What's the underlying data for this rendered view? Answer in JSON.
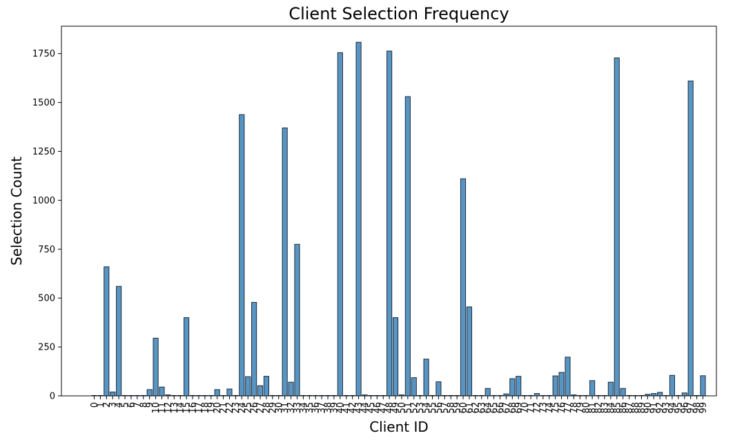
{
  "chart_data": {
    "type": "bar",
    "title": "Client Selection Frequency",
    "xlabel": "Client ID",
    "ylabel": "Selection Count",
    "ylim": [
      0,
      1890
    ],
    "yticks": [
      0,
      250,
      500,
      750,
      1000,
      1250,
      1500,
      1750
    ],
    "ytick_labels": [
      "0",
      "250",
      "500",
      "750",
      "1000",
      "1250",
      "1500",
      "1750"
    ],
    "grid": false,
    "colors": {
      "bar": "#4f8fc0",
      "edge": "#1a2a3a"
    },
    "categories": [
      "0",
      "1",
      "2",
      "3",
      "4",
      "5",
      "6",
      "7",
      "8",
      "9",
      "10",
      "11",
      "12",
      "13",
      "14",
      "15",
      "16",
      "17",
      "18",
      "19",
      "20",
      "21",
      "22",
      "23",
      "24",
      "25",
      "26",
      "27",
      "28",
      "29",
      "30",
      "31",
      "32",
      "33",
      "34",
      "35",
      "36",
      "37",
      "38",
      "39",
      "40",
      "41",
      "42",
      "43",
      "44",
      "45",
      "46",
      "47",
      "48",
      "49",
      "50",
      "51",
      "52",
      "53",
      "54",
      "55",
      "56",
      "57",
      "58",
      "59",
      "60",
      "61",
      "62",
      "63",
      "64",
      "65",
      "66",
      "67",
      "68",
      "69",
      "70",
      "71",
      "72",
      "73",
      "74",
      "75",
      "76",
      "77",
      "78",
      "79",
      "80",
      "81",
      "82",
      "83",
      "84",
      "85",
      "86",
      "87",
      "88",
      "89",
      "90",
      "91",
      "92",
      "93",
      "94",
      "95",
      "96",
      "97",
      "98",
      "99"
    ],
    "values": [
      2,
      2,
      660,
      20,
      560,
      2,
      2,
      2,
      2,
      32,
      295,
      45,
      5,
      2,
      2,
      400,
      2,
      2,
      2,
      2,
      32,
      2,
      35,
      2,
      1438,
      98,
      478,
      52,
      100,
      2,
      2,
      1370,
      70,
      775,
      2,
      2,
      2,
      2,
      2,
      2,
      1755,
      2,
      2,
      1808,
      5,
      2,
      2,
      2,
      1763,
      400,
      5,
      1530,
      93,
      2,
      188,
      2,
      72,
      2,
      2,
      2,
      1110,
      455,
      2,
      2,
      38,
      2,
      2,
      10,
      88,
      100,
      2,
      2,
      12,
      2,
      2,
      102,
      120,
      198,
      5,
      2,
      2,
      78,
      2,
      2,
      70,
      1728,
      38,
      2,
      2,
      2,
      8,
      12,
      18,
      2,
      105,
      2,
      15,
      1610,
      2,
      103
    ]
  }
}
